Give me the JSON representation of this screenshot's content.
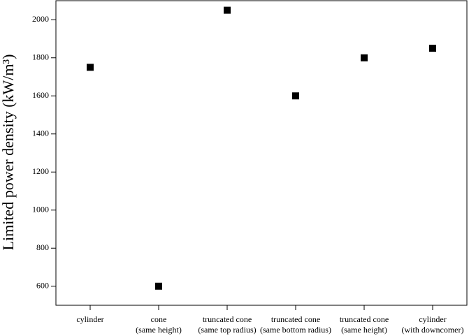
{
  "chart_data": {
    "type": "scatter",
    "y_label": "Limited power density (kW/m³)",
    "categories": [
      "cylinder",
      "cone\n(same height)",
      "truncated cone\n(same top radius)",
      "truncated cone\n(same bottom radius)",
      "truncated cone\n(same height)",
      "cylinder\n(with downcomer)"
    ],
    "values": [
      1750,
      600,
      2050,
      1600,
      1800,
      1850
    ],
    "color": "#000000",
    "ylim": [
      500,
      2100
    ],
    "yticks": [
      600,
      800,
      1000,
      1200,
      1400,
      1600,
      1800,
      2000
    ],
    "grid": false
  }
}
